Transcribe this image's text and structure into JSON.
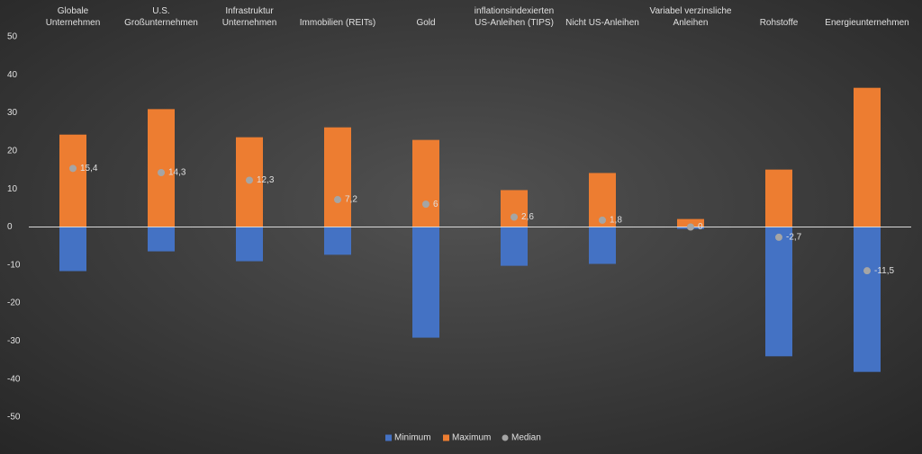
{
  "chart_data": {
    "type": "bar",
    "categories": [
      "Globale\nUnternehmen",
      "U.S.\nGroßunternehmen",
      "Infrastruktur\nUnternehmen",
      "Immobilien (REITs)",
      "Gold",
      "inflationsindexierten\nUS-Anleihen (TIPS)",
      "Nicht US-Anleihen",
      "Variabel verzinsliche\nAnleihen",
      "Rohstoffe",
      "Energieunternehmen"
    ],
    "series": [
      {
        "name": "Minimum",
        "type": "bar",
        "color": "#4472c4",
        "values": [
          -11.6,
          -6.4,
          -9.0,
          -7.3,
          -29.1,
          -10.2,
          -9.7,
          -0.5,
          -34.0,
          -38.1
        ]
      },
      {
        "name": "Maximum",
        "type": "bar",
        "color": "#ed7d31",
        "values": [
          24.3,
          31.0,
          23.6,
          26.2,
          22.9,
          9.7,
          14.2,
          2.1,
          15.1,
          36.6
        ]
      },
      {
        "name": "Median",
        "type": "scatter",
        "color": "#a5a5a5",
        "values": [
          15.4,
          14.3,
          12.3,
          7.2,
          6,
          2.6,
          1.8,
          0,
          -2.7,
          -11.5
        ],
        "value_labels": [
          "15,4",
          "14,3",
          "12,3",
          "7,2",
          "6",
          "2,6",
          "1,8",
          "0",
          "-2,7",
          "-11,5"
        ]
      }
    ],
    "ylim": [
      -50,
      50
    ],
    "yticks": [
      50,
      40,
      30,
      20,
      10,
      0,
      -10,
      -20,
      -30,
      -40,
      -50
    ],
    "grid": false,
    "legend": "bottom"
  }
}
